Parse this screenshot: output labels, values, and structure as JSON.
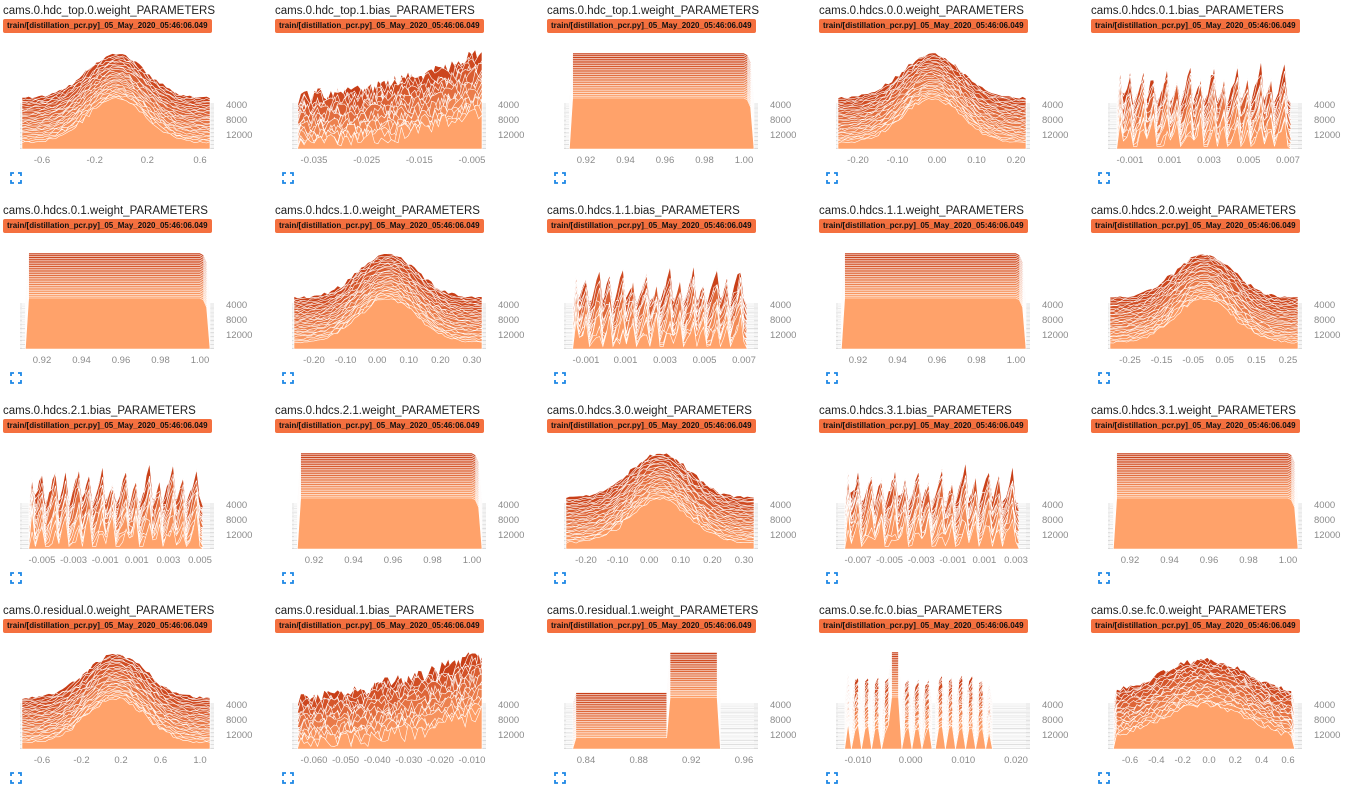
{
  "colors": {
    "newest": "#c83e17",
    "oldest": "#ffa26a",
    "run_badge": "#f4703f",
    "axis_text": "#8a8a8a",
    "expand_icon": "#1e88e5"
  },
  "charts": [
    {
      "title": "cams.0.hdc_top.0.weight_PARAMETERS",
      "run": "train/[distillation_pcr.py]_05_May_2020_05:46:06.049",
      "shape": "bell",
      "x_ticks": [
        "-0.6",
        "-0.2",
        "0.2",
        "0.6"
      ],
      "y_ticks": [
        "4000",
        "8000",
        "12000"
      ]
    },
    {
      "title": "cams.0.hdc_top.1.bias_PARAMETERS",
      "run": "train/[distillation_pcr.py]_05_May_2020_05:46:06.049",
      "shape": "ramp",
      "x_ticks": [
        "-0.035",
        "-0.025",
        "-0.015",
        "-0.005"
      ],
      "y_ticks": [
        "4000",
        "8000",
        "12000"
      ]
    },
    {
      "title": "cams.0.hdc_top.1.weight_PARAMETERS",
      "run": "train/[distillation_pcr.py]_05_May_2020_05:46:06.049",
      "shape": "block",
      "x_ticks": [
        "0.92",
        "0.94",
        "0.96",
        "0.98",
        "1.00"
      ],
      "y_ticks": [
        "4000",
        "8000",
        "12000"
      ]
    },
    {
      "title": "cams.0.hdcs.0.0.weight_PARAMETERS",
      "run": "train/[distillation_pcr.py]_05_May_2020_05:46:06.049",
      "shape": "bell",
      "x_ticks": [
        "-0.20",
        "-0.10",
        "0.00",
        "0.10",
        "0.20"
      ],
      "y_ticks": [
        "4000",
        "8000",
        "12000"
      ]
    },
    {
      "title": "cams.0.hdcs.0.1.bias_PARAMETERS",
      "run": "train/[distillation_pcr.py]_05_May_2020_05:46:06.049",
      "shape": "spiky",
      "x_ticks": [
        "-0.001",
        "0.001",
        "0.003",
        "0.005",
        "0.007"
      ],
      "y_ticks": [
        "4000",
        "8000",
        "12000"
      ]
    },
    {
      "title": "cams.0.hdcs.0.1.weight_PARAMETERS",
      "run": "train/[distillation_pcr.py]_05_May_2020_05:46:06.049",
      "shape": "block",
      "x_ticks": [
        "0.92",
        "0.94",
        "0.96",
        "0.98",
        "1.00"
      ],
      "y_ticks": [
        "4000",
        "8000",
        "12000"
      ]
    },
    {
      "title": "cams.0.hdcs.1.0.weight_PARAMETERS",
      "run": "train/[distillation_pcr.py]_05_May_2020_05:46:06.049",
      "shape": "bell",
      "x_ticks": [
        "-0.20",
        "-0.10",
        "0.00",
        "0.10",
        "0.20",
        "0.30"
      ],
      "y_ticks": [
        "4000",
        "8000",
        "12000"
      ]
    },
    {
      "title": "cams.0.hdcs.1.1.bias_PARAMETERS",
      "run": "train/[distillation_pcr.py]_05_May_2020_05:46:06.049",
      "shape": "spiky",
      "x_ticks": [
        "-0.001",
        "0.001",
        "0.003",
        "0.005",
        "0.007"
      ],
      "y_ticks": [
        "4000",
        "8000",
        "12000"
      ]
    },
    {
      "title": "cams.0.hdcs.1.1.weight_PARAMETERS",
      "run": "train/[distillation_pcr.py]_05_May_2020_05:46:06.049",
      "shape": "block",
      "x_ticks": [
        "0.92",
        "0.94",
        "0.96",
        "0.98",
        "1.00"
      ],
      "y_ticks": [
        "4000",
        "8000",
        "12000"
      ]
    },
    {
      "title": "cams.0.hdcs.2.0.weight_PARAMETERS",
      "run": "train/[distillation_pcr.py]_05_May_2020_05:46:06.049",
      "shape": "bell",
      "x_ticks": [
        "-0.25",
        "-0.15",
        "-0.05",
        "0.05",
        "0.15",
        "0.25"
      ],
      "y_ticks": [
        "4000",
        "8000",
        "12000"
      ]
    },
    {
      "title": "cams.0.hdcs.2.1.bias_PARAMETERS",
      "run": "train/[distillation_pcr.py]_05_May_2020_05:46:06.049",
      "shape": "spiky",
      "x_ticks": [
        "-0.005",
        "-0.003",
        "-0.001",
        "0.001",
        "0.003",
        "0.005"
      ],
      "y_ticks": [
        "4000",
        "8000",
        "12000"
      ]
    },
    {
      "title": "cams.0.hdcs.2.1.weight_PARAMETERS",
      "run": "train/[distillation_pcr.py]_05_May_2020_05:46:06.049",
      "shape": "block",
      "x_ticks": [
        "0.92",
        "0.94",
        "0.96",
        "0.98",
        "1.00"
      ],
      "y_ticks": [
        "4000",
        "8000",
        "12000"
      ]
    },
    {
      "title": "cams.0.hdcs.3.0.weight_PARAMETERS",
      "run": "train/[distillation_pcr.py]_05_May_2020_05:46:06.049",
      "shape": "bell",
      "x_ticks": [
        "-0.20",
        "-0.10",
        "0.00",
        "0.10",
        "0.20",
        "0.30"
      ],
      "y_ticks": [
        "4000",
        "8000",
        "12000"
      ]
    },
    {
      "title": "cams.0.hdcs.3.1.bias_PARAMETERS",
      "run": "train/[distillation_pcr.py]_05_May_2020_05:46:06.049",
      "shape": "spiky",
      "x_ticks": [
        "-0.007",
        "-0.005",
        "-0.003",
        "-0.001",
        "0.001",
        "0.003"
      ],
      "y_ticks": [
        "4000",
        "8000",
        "12000"
      ]
    },
    {
      "title": "cams.0.hdcs.3.1.weight_PARAMETERS",
      "run": "train/[distillation_pcr.py]_05_May_2020_05:46:06.049",
      "shape": "block",
      "x_ticks": [
        "0.92",
        "0.94",
        "0.96",
        "0.98",
        "1.00"
      ],
      "y_ticks": [
        "4000",
        "8000",
        "12000"
      ]
    },
    {
      "title": "cams.0.residual.0.weight_PARAMETERS",
      "run": "train/[distillation_pcr.py]_05_May_2020_05:46:06.049",
      "shape": "bell",
      "x_ticks": [
        "-0.6",
        "-0.2",
        "0.2",
        "0.6",
        "1.0"
      ],
      "y_ticks": [
        "4000",
        "8000",
        "12000"
      ]
    },
    {
      "title": "cams.0.residual.1.bias_PARAMETERS",
      "run": "train/[distillation_pcr.py]_05_May_2020_05:46:06.049",
      "shape": "ramp",
      "x_ticks": [
        "-0.060",
        "-0.050",
        "-0.040",
        "-0.030",
        "-0.020",
        "-0.010"
      ],
      "y_ticks": [
        "4000",
        "8000",
        "12000"
      ]
    },
    {
      "title": "cams.0.residual.1.weight_PARAMETERS",
      "run": "train/[distillation_pcr.py]_05_May_2020_05:46:06.049",
      "shape": "step",
      "x_ticks": [
        "0.84",
        "0.88",
        "0.92",
        "0.96"
      ],
      "y_ticks": [
        "4000",
        "8000",
        "12000"
      ]
    },
    {
      "title": "cams.0.se.fc.0.bias_PARAMETERS",
      "run": "train/[distillation_pcr.py]_05_May_2020_05:46:06.049",
      "shape": "spike",
      "x_ticks": [
        "-0.010",
        "0.000",
        "0.010",
        "0.020"
      ],
      "y_ticks": [
        "4000",
        "8000",
        "12000"
      ]
    },
    {
      "title": "cams.0.se.fc.0.weight_PARAMETERS",
      "run": "train/[distillation_pcr.py]_05_May_2020_05:46:06.049",
      "shape": "wide",
      "x_ticks": [
        "-0.6",
        "-0.4",
        "-0.2",
        "0.0",
        "0.2",
        "0.4",
        "0.6"
      ],
      "y_ticks": [
        "4000",
        "8000",
        "12000"
      ]
    }
  ]
}
